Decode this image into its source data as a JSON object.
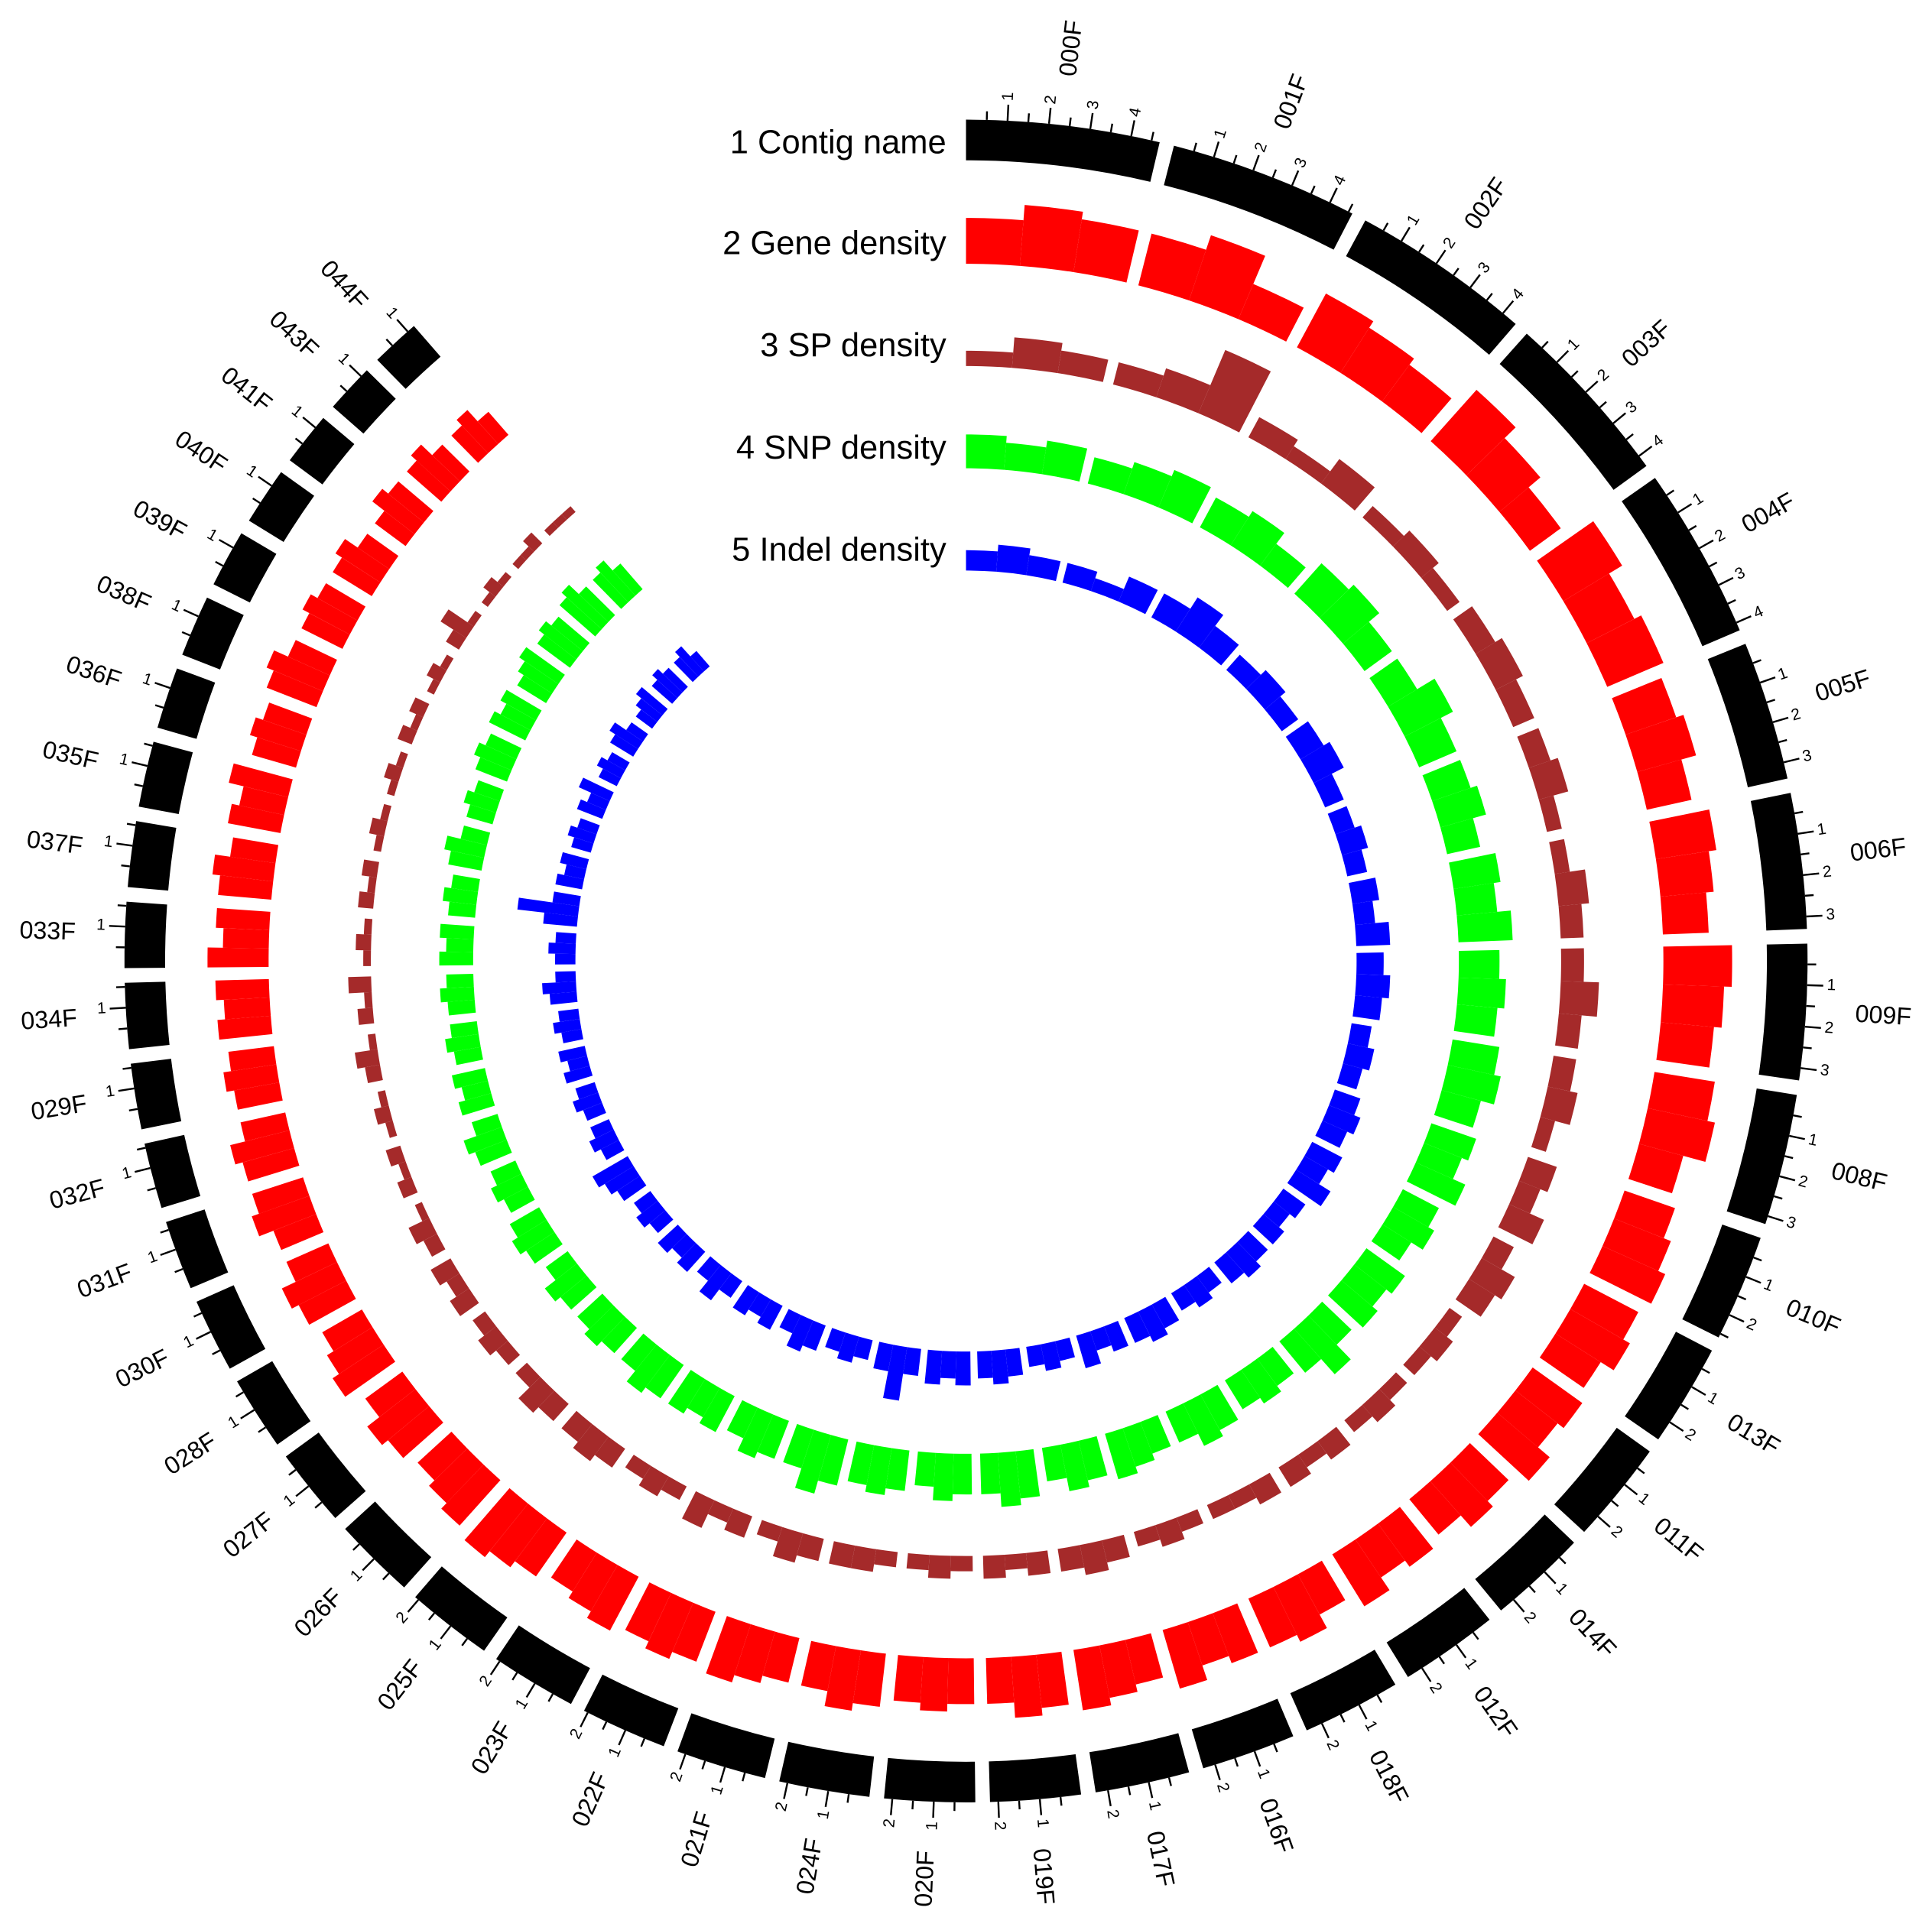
{
  "chart_data": {
    "type": "circos",
    "ideogram_label": "1 Contig name",
    "ideogram_color": "#000000",
    "ylim": [
      0,
      1
    ],
    "contigs": [
      {
        "name": "000F",
        "length": 4.7,
        "ticks": [
          1,
          2,
          3,
          4
        ]
      },
      {
        "name": "001F",
        "length": 4.6,
        "ticks": [
          1,
          2,
          3,
          4
        ]
      },
      {
        "name": "002F",
        "length": 4.4,
        "ticks": [
          1,
          2,
          3,
          4
        ]
      },
      {
        "name": "003F",
        "length": 4.3,
        "ticks": [
          1,
          2,
          3,
          4
        ]
      },
      {
        "name": "004F",
        "length": 4.2,
        "ticks": [
          1,
          2,
          3,
          4
        ]
      },
      {
        "name": "005F",
        "length": 3.4,
        "ticks": [
          1,
          2,
          3
        ]
      },
      {
        "name": "006F",
        "length": 3.3,
        "ticks": [
          1,
          2,
          3
        ]
      },
      {
        "name": "009F",
        "length": 3.3,
        "ticks": [
          1,
          2,
          3
        ]
      },
      {
        "name": "008F",
        "length": 3.2,
        "ticks": [
          1,
          2,
          3
        ]
      },
      {
        "name": "010F",
        "length": 2.6,
        "ticks": [
          1,
          2
        ]
      },
      {
        "name": "013F",
        "length": 2.5,
        "ticks": [
          1,
          2
        ]
      },
      {
        "name": "011F",
        "length": 2.5,
        "ticks": [
          1,
          2
        ]
      },
      {
        "name": "014F",
        "length": 2.4,
        "ticks": [
          1,
          2
        ]
      },
      {
        "name": "012F",
        "length": 2.4,
        "ticks": [
          1,
          2
        ]
      },
      {
        "name": "018F",
        "length": 2.4,
        "ticks": [
          1,
          2
        ]
      },
      {
        "name": "016F",
        "length": 2.3,
        "ticks": [
          1,
          2
        ]
      },
      {
        "name": "017F",
        "length": 2.3,
        "ticks": [
          1,
          2
        ]
      },
      {
        "name": "019F",
        "length": 2.2,
        "ticks": [
          1,
          2
        ]
      },
      {
        "name": "020F",
        "length": 2.2,
        "ticks": [
          1,
          2
        ]
      },
      {
        "name": "024F",
        "length": 2.2,
        "ticks": [
          1,
          2
        ]
      },
      {
        "name": "021F",
        "length": 2.2,
        "ticks": [
          1,
          2
        ]
      },
      {
        "name": "022F",
        "length": 2.1,
        "ticks": [
          1,
          2
        ]
      },
      {
        "name": "023F",
        "length": 2.1,
        "ticks": [
          1,
          2
        ]
      },
      {
        "name": "025F",
        "length": 2.1,
        "ticks": [
          1,
          2
        ]
      },
      {
        "name": "026F",
        "length": 2.0,
        "ticks": [
          1
        ]
      },
      {
        "name": "027F",
        "length": 1.9,
        "ticks": [
          1
        ]
      },
      {
        "name": "028F",
        "length": 1.8,
        "ticks": [
          1
        ]
      },
      {
        "name": "030F",
        "length": 1.8,
        "ticks": [
          1
        ]
      },
      {
        "name": "031F",
        "length": 1.7,
        "ticks": [
          1
        ]
      },
      {
        "name": "032F",
        "length": 1.6,
        "ticks": [
          1
        ]
      },
      {
        "name": "029F",
        "length": 1.6,
        "ticks": [
          1
        ]
      },
      {
        "name": "034F",
        "length": 1.6,
        "ticks": [
          1
        ]
      },
      {
        "name": "033F",
        "length": 1.6,
        "ticks": [
          1
        ]
      },
      {
        "name": "037F",
        "length": 1.6,
        "ticks": [
          1
        ]
      },
      {
        "name": "035F",
        "length": 1.6,
        "ticks": [
          1
        ]
      },
      {
        "name": "036F",
        "length": 1.5,
        "ticks": [
          1
        ]
      },
      {
        "name": "038F",
        "length": 1.5,
        "ticks": [
          1
        ]
      },
      {
        "name": "039F",
        "length": 1.4,
        "ticks": [
          1
        ]
      },
      {
        "name": "040F",
        "length": 1.4,
        "ticks": [
          1
        ]
      },
      {
        "name": "041F",
        "length": 1.3,
        "ticks": [
          1
        ]
      },
      {
        "name": "043F",
        "length": 1.2,
        "ticks": [
          1
        ]
      },
      {
        "name": "044F",
        "length": 1.2,
        "ticks": [
          1
        ]
      }
    ],
    "tracks": [
      {
        "name": "2 Gene density",
        "color": "#ff0000",
        "values": [
          [
            0.6,
            0.8,
            0.7
          ],
          [
            0.7,
            0.9,
            0.5
          ],
          [
            0.8,
            0.7,
            0.6
          ],
          [
            0.9,
            0.7,
            0.5
          ],
          [
            0.9,
            0.7,
            0.8
          ],
          [
            0.7,
            0.8,
            0.6
          ],
          [
            0.8,
            0.7,
            0.6
          ],
          [
            0.9,
            0.8,
            0.7
          ],
          [
            0.8,
            0.9,
            0.6
          ],
          [
            0.7,
            0.8,
            0.9
          ],
          [
            0.8,
            0.9,
            0.7
          ],
          [
            0.8,
            0.7,
            0.9
          ],
          [
            0.7,
            0.8,
            0.6
          ],
          [
            0.7,
            0.6,
            0.8
          ],
          [
            0.6,
            0.8,
            0.7
          ],
          [
            0.7,
            0.6,
            0.8
          ],
          [
            0.6,
            0.7,
            0.8
          ],
          [
            0.7,
            0.8,
            0.6
          ],
          [
            0.6,
            0.7,
            0.6
          ],
          [
            0.7,
            0.8,
            0.6
          ],
          [
            0.6,
            0.7,
            0.8
          ],
          [
            0.7,
            0.8,
            0.7
          ],
          [
            0.8,
            0.7,
            0.6
          ],
          [
            0.7,
            0.8,
            0.9
          ],
          [
            0.8,
            0.7,
            0.6
          ],
          [
            0.7,
            0.8,
            0.6
          ],
          [
            0.8,
            0.7,
            0.6
          ],
          [
            0.7,
            0.8,
            0.6
          ],
          [
            0.6,
            0.8,
            0.7
          ],
          [
            0.7,
            0.8,
            0.6
          ],
          [
            0.6,
            0.7,
            0.6
          ],
          [
            0.7,
            0.6,
            0.7
          ],
          [
            0.8,
            0.6,
            0.7
          ],
          [
            0.7,
            0.8,
            0.6
          ],
          [
            0.7,
            0.6,
            0.8
          ],
          [
            0.6,
            0.7,
            0.6
          ],
          [
            0.7,
            0.8,
            0.6
          ],
          [
            0.6,
            0.7,
            0.6
          ],
          [
            0.6,
            0.7,
            0.5
          ],
          [
            0.5,
            0.7,
            0.6
          ],
          [
            0.6,
            0.7,
            0.5
          ],
          [
            0.5,
            0.6,
            0.4
          ]
        ]
      },
      {
        "name": "3 SP density",
        "color": "#a52a2a",
        "values": [
          [
            0.2,
            0.4,
            0.3
          ],
          [
            0.3,
            0.4,
            0.9
          ],
          [
            0.3,
            0.2,
            0.4
          ],
          [
            0.2,
            0.3,
            0.2
          ],
          [
            0.3,
            0.4,
            0.3
          ],
          [
            0.3,
            0.4,
            0.2
          ],
          [
            0.2,
            0.4,
            0.3
          ],
          [
            0.3,
            0.5,
            0.3
          ],
          [
            0.3,
            0.4,
            0.2
          ],
          [
            0.4,
            0.3,
            0.5
          ],
          [
            0.3,
            0.5,
            0.4
          ],
          [
            0.2,
            0.3,
            0.2
          ],
          [
            0.2,
            0.3,
            0.2
          ],
          [
            0.3,
            0.2,
            0.3
          ],
          [
            0.3,
            0.2,
            0.2
          ],
          [
            0.2,
            0.3,
            0.2
          ],
          [
            0.3,
            0.4,
            0.3
          ],
          [
            0.3,
            0.2,
            0.3
          ],
          [
            0.2,
            0.3,
            0.2
          ],
          [
            0.2,
            0.3,
            0.3
          ],
          [
            0.3,
            0.4,
            0.2
          ],
          [
            0.3,
            0.2,
            0.4
          ],
          [
            0.2,
            0.3,
            0.2
          ],
          [
            0.3,
            0.4,
            0.3
          ],
          [
            0.3,
            0.4,
            0.2
          ],
          [
            0.2,
            0.3,
            0.2
          ],
          [
            0.3,
            0.2,
            0.3
          ],
          [
            0.2,
            0.3,
            0.1
          ],
          [
            0.2,
            0.1,
            0.2
          ],
          [
            0.1,
            0.2,
            0.1
          ],
          [
            0.2,
            0.3,
            0.1
          ],
          [
            0.2,
            0.1,
            0.3
          ],
          [
            0.1,
            0.2,
            0.1
          ],
          [
            0.2,
            0.1,
            0.2
          ],
          [
            0.1,
            0.2,
            0.1
          ],
          [
            0.1,
            0.2,
            0.1
          ],
          [
            0.2,
            0.1,
            0.2
          ],
          [
            0.1,
            0.2,
            0.1
          ],
          [
            0.2,
            0.4,
            0.1
          ],
          [
            0.1,
            0.2,
            0.1
          ],
          [
            0.1,
            0.1,
            0.2
          ],
          [
            0.1,
            0.1,
            0.1
          ]
        ]
      },
      {
        "name": "4 SNP density",
        "color": "#00ff00",
        "values": [
          [
            0.5,
            0.4,
            0.5
          ],
          [
            0.4,
            0.5,
            0.6
          ],
          [
            0.5,
            0.6,
            0.4
          ],
          [
            0.6,
            0.7,
            0.5
          ],
          [
            0.5,
            0.8,
            0.6
          ],
          [
            0.6,
            0.7,
            0.5
          ],
          [
            0.7,
            0.6,
            0.8
          ],
          [
            0.6,
            0.7,
            0.6
          ],
          [
            0.7,
            0.8,
            0.6
          ],
          [
            0.7,
            0.6,
            0.8
          ],
          [
            0.6,
            0.7,
            0.5
          ],
          [
            0.7,
            0.6,
            0.7
          ],
          [
            0.6,
            0.9,
            0.6
          ],
          [
            0.5,
            0.6,
            0.5
          ],
          [
            0.6,
            0.7,
            0.5
          ],
          [
            0.5,
            0.6,
            0.7
          ],
          [
            0.6,
            0.7,
            0.5
          ],
          [
            0.7,
            0.8,
            0.6
          ],
          [
            0.6,
            0.7,
            0.5
          ],
          [
            0.6,
            0.7,
            0.6
          ],
          [
            0.7,
            0.9,
            0.6
          ],
          [
            0.6,
            0.7,
            0.5
          ],
          [
            0.6,
            0.5,
            0.6
          ],
          [
            0.6,
            0.7,
            0.5
          ],
          [
            0.5,
            0.6,
            0.5
          ],
          [
            0.5,
            0.6,
            0.4
          ],
          [
            0.5,
            0.6,
            0.5
          ],
          [
            0.4,
            0.5,
            0.4
          ],
          [
            0.5,
            0.6,
            0.4
          ],
          [
            0.5,
            0.4,
            0.5
          ],
          [
            0.4,
            0.5,
            0.4
          ],
          [
            0.4,
            0.5,
            0.4
          ],
          [
            0.5,
            0.4,
            0.5
          ],
          [
            0.4,
            0.5,
            0.4
          ],
          [
            0.5,
            0.6,
            0.4
          ],
          [
            0.4,
            0.5,
            0.4
          ],
          [
            0.5,
            0.6,
            0.5
          ],
          [
            0.6,
            0.5,
            0.6
          ],
          [
            0.5,
            0.6,
            0.7
          ],
          [
            0.6,
            0.7,
            0.6
          ],
          [
            0.7,
            0.8,
            0.6
          ],
          [
            0.6,
            0.7,
            0.5
          ]
        ]
      },
      {
        "name": "5 Indel density",
        "color": "#0000ff",
        "values": [
          [
            0.3,
            0.4,
            0.3
          ],
          [
            0.3,
            0.2,
            0.4
          ],
          [
            0.4,
            0.6,
            0.4
          ],
          [
            0.3,
            0.4,
            0.3
          ],
          [
            0.4,
            0.5,
            0.3
          ],
          [
            0.3,
            0.4,
            0.3
          ],
          [
            0.4,
            0.3,
            0.5
          ],
          [
            0.4,
            0.5,
            0.4
          ],
          [
            0.3,
            0.4,
            0.3
          ],
          [
            0.4,
            0.5,
            0.4
          ],
          [
            0.5,
            0.4,
            0.6
          ],
          [
            0.4,
            0.3,
            0.4
          ],
          [
            0.4,
            0.5,
            0.4
          ],
          [
            0.3,
            0.4,
            0.3
          ],
          [
            0.4,
            0.5,
            0.4
          ],
          [
            0.4,
            0.3,
            0.5
          ],
          [
            0.3,
            0.4,
            0.3
          ],
          [
            0.4,
            0.5,
            0.4
          ],
          [
            0.5,
            0.4,
            0.5
          ],
          [
            0.4,
            0.8,
            0.4
          ],
          [
            0.3,
            0.4,
            0.3
          ],
          [
            0.4,
            0.5,
            0.3
          ],
          [
            0.4,
            0.3,
            0.4
          ],
          [
            0.3,
            0.5,
            0.3
          ],
          [
            0.4,
            0.3,
            0.4
          ],
          [
            0.3,
            0.4,
            0.3
          ],
          [
            0.4,
            0.5,
            0.6
          ],
          [
            0.3,
            0.4,
            0.3
          ],
          [
            0.3,
            0.4,
            0.3
          ],
          [
            0.4,
            0.3,
            0.4
          ],
          [
            0.3,
            0.4,
            0.3
          ],
          [
            0.4,
            0.5,
            0.3
          ],
          [
            0.3,
            0.4,
            0.3
          ],
          [
            0.5,
            0.9,
            0.4
          ],
          [
            0.4,
            0.3,
            0.4
          ],
          [
            0.3,
            0.4,
            0.3
          ],
          [
            0.4,
            0.3,
            0.5
          ],
          [
            0.3,
            0.4,
            0.3
          ],
          [
            0.4,
            0.5,
            0.3
          ],
          [
            0.3,
            0.4,
            0.5
          ],
          [
            0.4,
            0.5,
            0.4
          ],
          [
            0.4,
            0.5,
            0.3
          ]
        ]
      }
    ]
  }
}
